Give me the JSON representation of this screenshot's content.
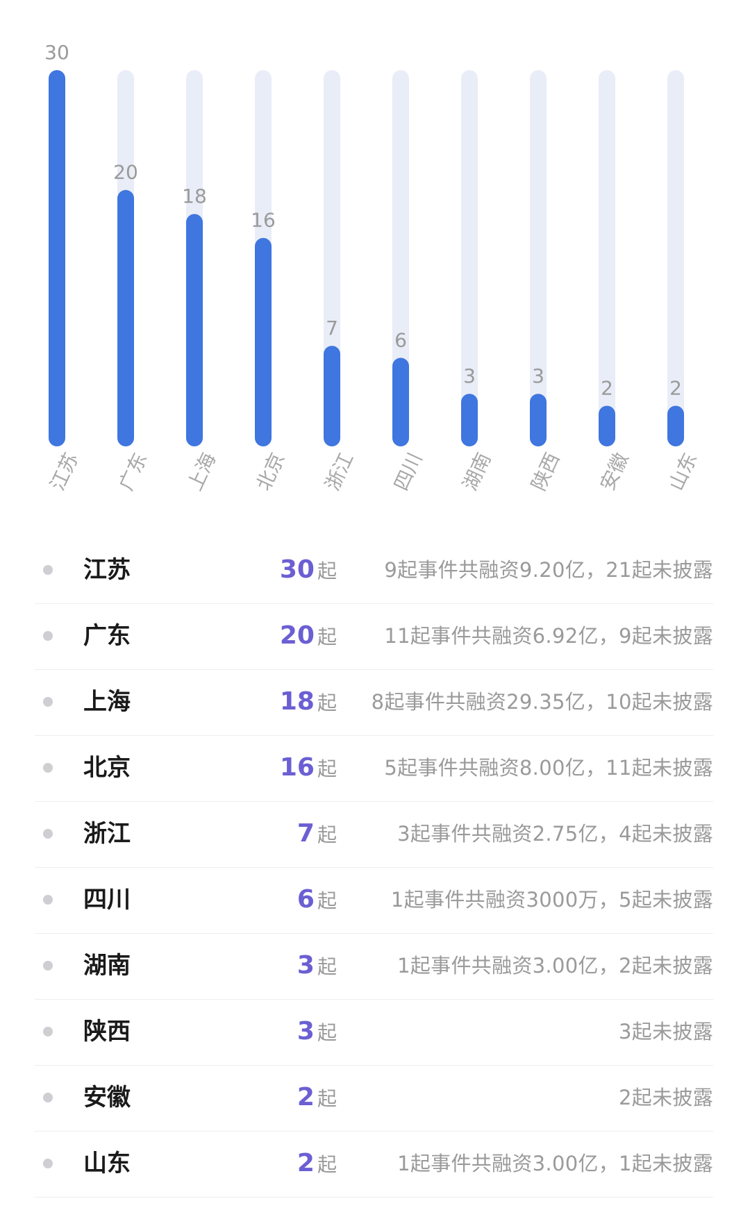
{
  "chart_data": {
    "type": "bar",
    "categories": [
      "江苏",
      "广东",
      "上海",
      "北京",
      "浙江",
      "四川",
      "湖南",
      "陕西",
      "安徽",
      "山东"
    ],
    "values": [
      30,
      20,
      18,
      16,
      7,
      6,
      3,
      3,
      2,
      2
    ],
    "ylim": [
      0,
      30
    ],
    "title": "",
    "xlabel": "",
    "ylabel": "",
    "grid": false,
    "colors": {
      "bar": "#3f76df",
      "track": "#e9edf7",
      "value_label": "#9a9a9a",
      "category_label": "#a8a8a8"
    }
  },
  "list": {
    "unit": "起",
    "rows": [
      {
        "province": "江苏",
        "count": "30",
        "desc": "9起事件共融资9.20亿，21起未披露"
      },
      {
        "province": "广东",
        "count": "20",
        "desc": "11起事件共融资6.92亿，9起未披露"
      },
      {
        "province": "上海",
        "count": "18",
        "desc": "8起事件共融资29.35亿，10起未披露"
      },
      {
        "province": "北京",
        "count": "16",
        "desc": "5起事件共融资8.00亿，11起未披露"
      },
      {
        "province": "浙江",
        "count": "7",
        "desc": "3起事件共融资2.75亿，4起未披露"
      },
      {
        "province": "四川",
        "count": "6",
        "desc": "1起事件共融资3000万，5起未披露"
      },
      {
        "province": "湖南",
        "count": "3",
        "desc": "1起事件共融资3.00亿，2起未披露"
      },
      {
        "province": "陕西",
        "count": "3",
        "desc": "3起未披露"
      },
      {
        "province": "安徽",
        "count": "2",
        "desc": "2起未披露"
      },
      {
        "province": "山东",
        "count": "2",
        "desc": "1起事件共融资3.00亿，1起未披露"
      }
    ],
    "colors": {
      "count": "#6b5fd3",
      "dot": "#cfcfd3",
      "divider": "#eeeeee"
    }
  }
}
